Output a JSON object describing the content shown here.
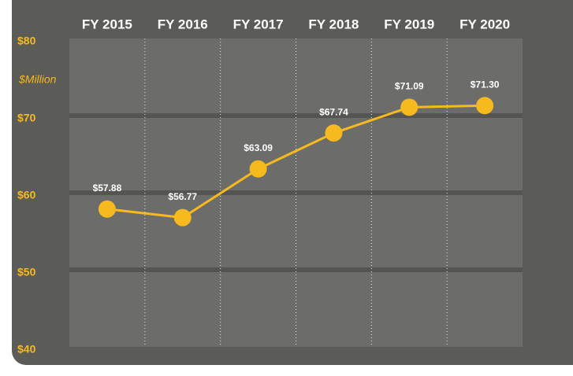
{
  "chart_data": {
    "type": "line",
    "y_axis_label": "$Million",
    "categories": [
      "FY 2015",
      "FY 2016",
      "FY 2017",
      "FY 2018",
      "FY 2019",
      "FY 2020"
    ],
    "series": [
      {
        "color": "#f6b91e",
        "values": [
          57.88,
          56.77,
          63.09,
          67.74,
          71.09,
          71.3
        ],
        "value_labels": [
          "$57.88",
          "$56.77",
          "$63.09",
          "$67.74",
          "$71.09",
          "$71.30"
        ]
      }
    ],
    "ylim": [
      40,
      80
    ],
    "yticks": [
      {
        "value": 40,
        "label": "$40"
      },
      {
        "value": 50,
        "label": "$50"
      },
      {
        "value": 60,
        "label": "$60"
      },
      {
        "value": 70,
        "label": "$70"
      },
      {
        "value": 80,
        "label": "$80"
      }
    ],
    "grid": true
  }
}
